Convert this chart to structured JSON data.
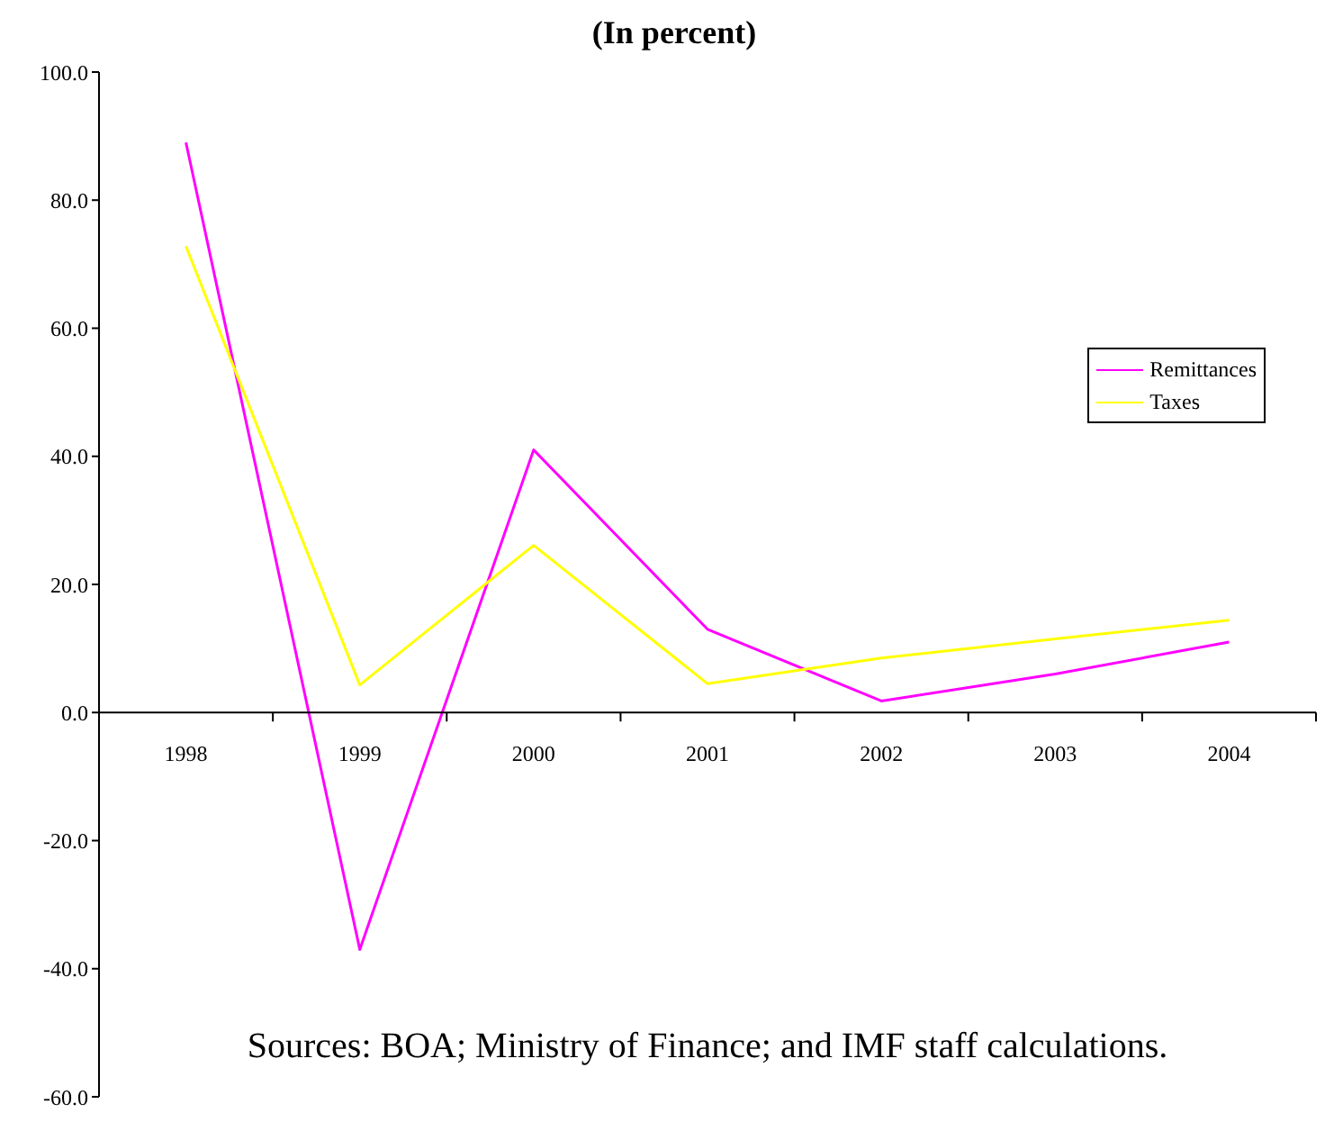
{
  "chart_data": {
    "type": "line",
    "title": "(In percent)",
    "categories": [
      "1998",
      "1999",
      "2000",
      "2001",
      "2002",
      "2003",
      "2004"
    ],
    "series": [
      {
        "name": "Remittances",
        "color": "#ff00ff",
        "values": [
          89,
          -37,
          41,
          13,
          1.8,
          6,
          11
        ]
      },
      {
        "name": "Taxes",
        "color": "#ffff00",
        "values": [
          72.8,
          4.3,
          26.1,
          4.5,
          8.5,
          11.5,
          14.4
        ]
      }
    ],
    "ylim": [
      -60,
      100
    ],
    "yticks": [
      {
        "value": -60,
        "label": "-60.0"
      },
      {
        "value": -40,
        "label": "-40.0"
      },
      {
        "value": -20,
        "label": "-20.0"
      },
      {
        "value": 0,
        "label": "0.0"
      },
      {
        "value": 20,
        "label": "20.0"
      },
      {
        "value": 40,
        "label": "40.0"
      },
      {
        "value": 60,
        "label": "60.0"
      },
      {
        "value": 80,
        "label": "80.0"
      },
      {
        "value": 100,
        "label": "100.0"
      }
    ],
    "legend": "right",
    "marker": "none",
    "line_style": "solid",
    "grid": false,
    "annotations": [
      "Sources: BOA; Ministry of Finance; and IMF staff calculations."
    ]
  }
}
